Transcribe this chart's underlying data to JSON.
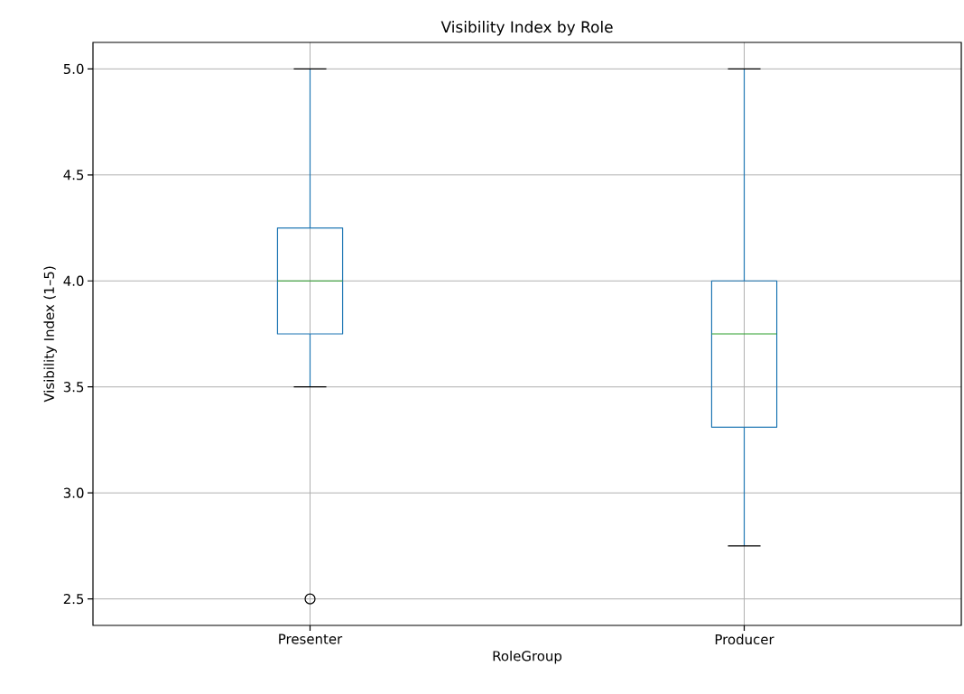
{
  "chart_data": {
    "type": "box",
    "title": "Visibility Index by Role",
    "xlabel": "RoleGroup",
    "ylabel": "Visibility Index (1–5)",
    "categories": [
      "Presenter",
      "Producer"
    ],
    "boxes": [
      {
        "low": 3.5,
        "q1": 3.75,
        "median": 4.0,
        "q3": 4.25,
        "high": 5.0,
        "outliers": [
          2.5
        ]
      },
      {
        "low": 2.75,
        "q1": 3.31,
        "median": 3.75,
        "q3": 4.0,
        "high": 5.0
      }
    ],
    "color": "#1f77b4",
    "ylim": [
      2.375,
      5.125
    ],
    "yticks": [
      2.5,
      {
        "value": 3,
        "label": "3.0"
      },
      3.5,
      {
        "value": 4,
        "label": "4.0"
      },
      4.5,
      {
        "value": 5,
        "label": "5.0"
      }
    ],
    "grid": true
  }
}
